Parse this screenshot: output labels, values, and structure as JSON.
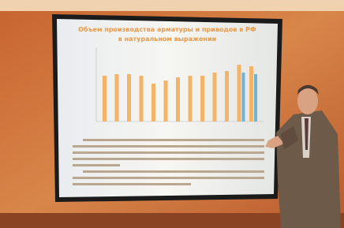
{
  "slide": {
    "title_line1": "Объем производства арматуры и приводов в РФ",
    "title_line2": "в натуральном выражении"
  }
}
